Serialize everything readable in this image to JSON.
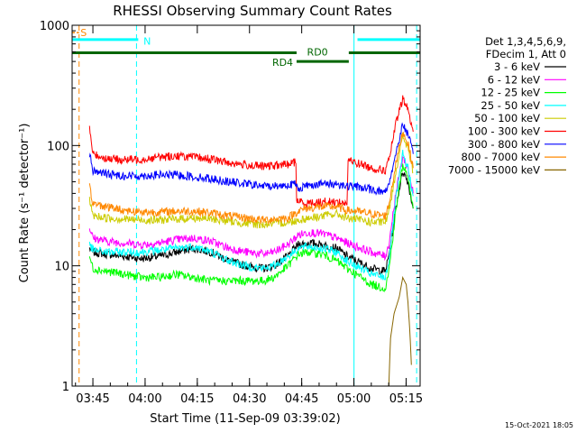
{
  "chart_data": {
    "type": "line",
    "title": "RHESSI Observing Summary Count Rates",
    "xlabel": "Start Time (11-Sep-09 03:39:02)",
    "ylabel": "Count Rate (s⁻¹ detector⁻¹)",
    "yscale": "log",
    "ylim": [
      1,
      1000
    ],
    "xlim_minutes": [
      0,
      100
    ],
    "x_unit": "minutes after 03:39:02",
    "x_ticks": [
      {
        "label": "03:45",
        "t": 5.97
      },
      {
        "label": "04:00",
        "t": 20.97
      },
      {
        "label": "04:15",
        "t": 35.97
      },
      {
        "label": "04:30",
        "t": 50.97
      },
      {
        "label": "04:45",
        "t": 65.97
      },
      {
        "label": "05:00",
        "t": 80.97
      },
      {
        "label": "05:15",
        "t": 95.97
      }
    ],
    "y_ticks": [
      {
        "label": "1",
        "v": 1
      },
      {
        "label": "10",
        "v": 10
      },
      {
        "label": "100",
        "v": 100
      },
      {
        "label": "1000",
        "v": 1000
      }
    ],
    "legend_header": [
      "Det 1,3,4,5,6,9,",
      "FDecim 1, Att 0"
    ],
    "legend_position": "right",
    "series": [
      {
        "name": "3 - 6 keV",
        "color": "#000000",
        "points": [
          [
            4.5,
            0
          ],
          [
            5,
            14
          ],
          [
            6,
            13
          ],
          [
            10,
            12.5
          ],
          [
            15,
            12
          ],
          [
            20,
            11.5
          ],
          [
            25,
            12
          ],
          [
            30,
            13
          ],
          [
            35,
            14
          ],
          [
            40,
            13
          ],
          [
            45,
            11
          ],
          [
            50,
            10
          ],
          [
            55,
            9.5
          ],
          [
            58,
            10
          ],
          [
            62,
            12
          ],
          [
            65,
            15
          ],
          [
            68,
            15.5
          ],
          [
            72,
            15
          ],
          [
            76,
            14
          ],
          [
            79,
            12
          ],
          [
            83,
            10.5
          ],
          [
            86,
            9.5
          ],
          [
            90,
            9
          ],
          [
            91,
            12
          ],
          [
            93,
            30
          ],
          [
            95,
            62
          ],
          [
            96.5,
            50
          ],
          [
            98,
            30
          ]
        ]
      },
      {
        "name": "6 - 12 keV",
        "color": "#ff00ff",
        "points": [
          [
            4.5,
            0
          ],
          [
            5,
            21
          ],
          [
            6,
            17
          ],
          [
            10,
            16
          ],
          [
            15,
            15.5
          ],
          [
            20,
            15
          ],
          [
            25,
            15.5
          ],
          [
            30,
            16.5
          ],
          [
            35,
            17
          ],
          [
            40,
            16
          ],
          [
            45,
            14
          ],
          [
            50,
            13
          ],
          [
            55,
            12.5
          ],
          [
            58,
            13
          ],
          [
            62,
            15
          ],
          [
            65,
            18
          ],
          [
            68,
            19
          ],
          [
            72,
            18.5
          ],
          [
            76,
            17
          ],
          [
            79,
            15.5
          ],
          [
            83,
            14
          ],
          [
            86,
            13
          ],
          [
            90,
            12
          ],
          [
            91,
            15
          ],
          [
            93,
            40
          ],
          [
            95,
            80
          ],
          [
            96.5,
            65
          ],
          [
            98,
            40
          ]
        ]
      },
      {
        "name": "12 - 25 keV",
        "color": "#00ff00",
        "points": [
          [
            4.5,
            0
          ],
          [
            5,
            12
          ],
          [
            6,
            9.5
          ],
          [
            10,
            9
          ],
          [
            15,
            8.5
          ],
          [
            20,
            8
          ],
          [
            25,
            8
          ],
          [
            30,
            8.5
          ],
          [
            35,
            8
          ],
          [
            40,
            7.5
          ],
          [
            45,
            7.5
          ],
          [
            50,
            7.5
          ],
          [
            55,
            7.5
          ],
          [
            58,
            8
          ],
          [
            62,
            10
          ],
          [
            65,
            12.5
          ],
          [
            68,
            13
          ],
          [
            72,
            12.5
          ],
          [
            76,
            11
          ],
          [
            79,
            9.5
          ],
          [
            83,
            8
          ],
          [
            86,
            7
          ],
          [
            90,
            6.5
          ],
          [
            91,
            9
          ],
          [
            93,
            28
          ],
          [
            95,
            70
          ],
          [
            96.5,
            55
          ],
          [
            98,
            30
          ]
        ]
      },
      {
        "name": "25 - 50 keV",
        "color": "#00ffff",
        "points": [
          [
            4.5,
            0
          ],
          [
            5,
            15
          ],
          [
            6,
            13.5
          ],
          [
            10,
            13
          ],
          [
            15,
            13
          ],
          [
            20,
            13
          ],
          [
            25,
            13.5
          ],
          [
            30,
            14
          ],
          [
            35,
            14.5
          ],
          [
            40,
            13
          ],
          [
            45,
            11
          ],
          [
            50,
            10
          ],
          [
            55,
            9.5
          ],
          [
            58,
            10
          ],
          [
            62,
            12
          ],
          [
            65,
            14
          ],
          [
            68,
            14.5
          ],
          [
            72,
            14
          ],
          [
            76,
            13
          ],
          [
            79,
            11
          ],
          [
            83,
            9.5
          ],
          [
            86,
            8.5
          ],
          [
            90,
            8
          ],
          [
            91,
            11
          ],
          [
            93,
            35
          ],
          [
            95,
            85
          ],
          [
            96.5,
            65
          ],
          [
            98,
            38
          ]
        ]
      },
      {
        "name": "50 - 100 keV",
        "color": "#cccc00",
        "points": [
          [
            4.5,
            0
          ],
          [
            5,
            35
          ],
          [
            6,
            26
          ],
          [
            10,
            25
          ],
          [
            15,
            24.5
          ],
          [
            20,
            24
          ],
          [
            25,
            24
          ],
          [
            30,
            24.5
          ],
          [
            35,
            25
          ],
          [
            40,
            24.5
          ],
          [
            45,
            23.5
          ],
          [
            50,
            22.5
          ],
          [
            55,
            22
          ],
          [
            58,
            22.5
          ],
          [
            62,
            23
          ],
          [
            65,
            24
          ],
          [
            68,
            25
          ],
          [
            72,
            26
          ],
          [
            76,
            27
          ],
          [
            79,
            25
          ],
          [
            83,
            24
          ],
          [
            86,
            23
          ],
          [
            90,
            23
          ],
          [
            91,
            28
          ],
          [
            93,
            60
          ],
          [
            95,
            120
          ],
          [
            96.5,
            95
          ],
          [
            98,
            60
          ]
        ]
      },
      {
        "name": "100 - 300 keV",
        "color": "#ff0000",
        "points": [
          [
            4.5,
            0
          ],
          [
            5,
            140
          ],
          [
            6,
            85
          ],
          [
            10,
            78
          ],
          [
            15,
            76
          ],
          [
            20,
            77
          ],
          [
            25,
            80
          ],
          [
            30,
            82
          ],
          [
            35,
            80
          ],
          [
            40,
            77
          ],
          [
            45,
            72
          ],
          [
            50,
            69
          ],
          [
            55,
            67
          ],
          [
            58,
            68
          ],
          [
            62,
            70
          ],
          [
            64.3,
            73
          ],
          [
            64.5,
            35
          ],
          [
            67,
            33
          ],
          [
            72,
            34
          ],
          [
            76,
            34
          ],
          [
            79,
            33
          ],
          [
            79.3,
            75
          ],
          [
            83,
            70
          ],
          [
            86,
            65
          ],
          [
            90,
            62
          ],
          [
            91,
            75
          ],
          [
            93,
            150
          ],
          [
            95,
            245
          ],
          [
            96.5,
            200
          ],
          [
            98,
            130
          ]
        ]
      },
      {
        "name": "300 - 800 keV",
        "color": "#0000ff",
        "points": [
          [
            4.5,
            0
          ],
          [
            5,
            85
          ],
          [
            6,
            62
          ],
          [
            10,
            58
          ],
          [
            15,
            56
          ],
          [
            20,
            56
          ],
          [
            25,
            57
          ],
          [
            30,
            57
          ],
          [
            35,
            55
          ],
          [
            40,
            53
          ],
          [
            45,
            50
          ],
          [
            50,
            48
          ],
          [
            55,
            46
          ],
          [
            58,
            46
          ],
          [
            62,
            47
          ],
          [
            64,
            48
          ],
          [
            65,
            44
          ],
          [
            68,
            47
          ],
          [
            72,
            48
          ],
          [
            76,
            48
          ],
          [
            79,
            46
          ],
          [
            83,
            45
          ],
          [
            86,
            43
          ],
          [
            90,
            41
          ],
          [
            91,
            48
          ],
          [
            93,
            85
          ],
          [
            95,
            150
          ],
          [
            96.5,
            125
          ],
          [
            98,
            85
          ]
        ]
      },
      {
        "name": "800 - 7000 keV",
        "color": "#ff8800",
        "points": [
          [
            4.5,
            0
          ],
          [
            5,
            45
          ],
          [
            6,
            33
          ],
          [
            10,
            31
          ],
          [
            15,
            29
          ],
          [
            20,
            28
          ],
          [
            25,
            28
          ],
          [
            30,
            28.5
          ],
          [
            35,
            28.5
          ],
          [
            40,
            27.5
          ],
          [
            45,
            26
          ],
          [
            50,
            25
          ],
          [
            55,
            24
          ],
          [
            58,
            24.5
          ],
          [
            62,
            25
          ],
          [
            64.5,
            28
          ],
          [
            67,
            30
          ],
          [
            72,
            31
          ],
          [
            76,
            31
          ],
          [
            79,
            29
          ],
          [
            83,
            28
          ],
          [
            86,
            27
          ],
          [
            90,
            26
          ],
          [
            91,
            32
          ],
          [
            93,
            70
          ],
          [
            95,
            130
          ],
          [
            96.5,
            105
          ],
          [
            98,
            65
          ]
        ]
      },
      {
        "name": "7000 - 15000 keV",
        "color": "#886600",
        "points": [
          [
            91,
            1
          ],
          [
            91.5,
            2.5
          ],
          [
            92.5,
            4
          ],
          [
            94,
            5.5
          ],
          [
            95,
            8
          ],
          [
            96,
            7
          ],
          [
            96.5,
            5
          ],
          [
            97,
            3
          ],
          [
            97.5,
            1.5
          ]
        ]
      }
    ],
    "annotations": [
      {
        "text": "S",
        "color": "#ff8800",
        "t": 2.4,
        "v": 810
      },
      {
        "text": "N",
        "color": "#00ffff",
        "t": 20.5,
        "v": 690
      },
      {
        "text": "RD0",
        "color": "#006600",
        "t": 67.5,
        "v": 560
      },
      {
        "text": "RD4",
        "color": "#006600",
        "t": 57.5,
        "v": 460
      }
    ],
    "spans": [
      {
        "kind": "S",
        "color": "#ff8800",
        "t0": 0,
        "t1": 2,
        "v": 870
      },
      {
        "kind": "N",
        "color": "#00ffff",
        "t0": 0,
        "t1": 19,
        "v": 760
      },
      {
        "kind": "N",
        "color": "#00ffff",
        "t0": 82,
        "t1": 100,
        "v": 760
      },
      {
        "kind": "RD",
        "color": "#006600",
        "t0": 0,
        "t1": 64.5,
        "v": 590
      },
      {
        "kind": "RD",
        "color": "#006600",
        "t0": 79.5,
        "t1": 100,
        "v": 590
      },
      {
        "kind": "RD",
        "color": "#006600",
        "t0": 64.5,
        "t1": 79.5,
        "v": 500
      }
    ],
    "vlines": [
      {
        "t": 0,
        "color": "#00ffff",
        "style": "solid"
      },
      {
        "t": 81,
        "color": "#00ffff",
        "style": "solid"
      },
      {
        "t": 18.5,
        "color": "#00ffff",
        "style": "dashed"
      },
      {
        "t": 99,
        "color": "#00ffff",
        "style": "dashed"
      },
      {
        "t": 2,
        "color": "#ff8800",
        "style": "dashed"
      }
    ]
  },
  "footer": "15-Oct-2021 18:05"
}
